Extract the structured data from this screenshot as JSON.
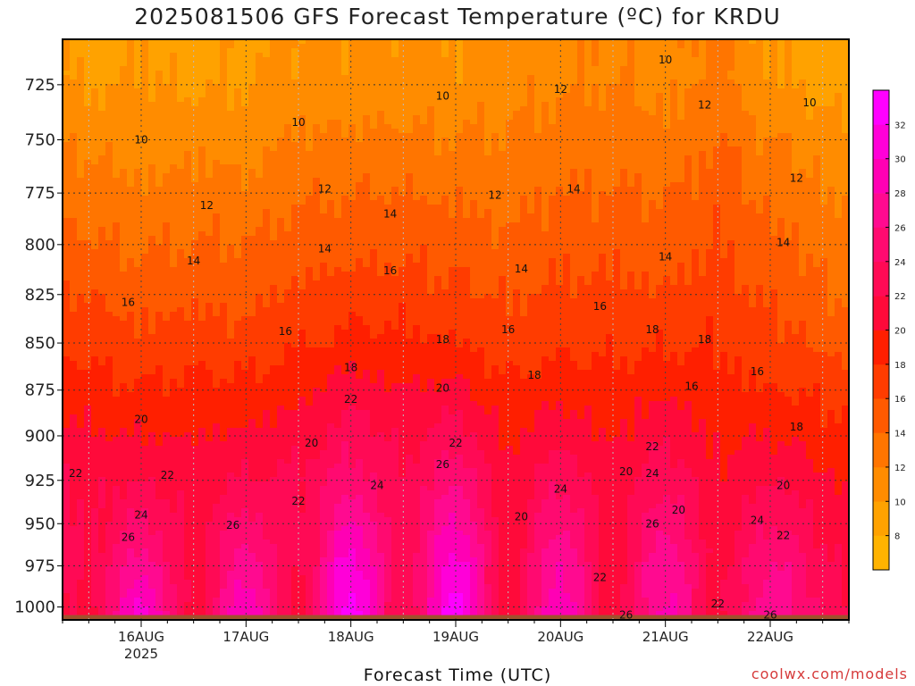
{
  "chart_data": {
    "type": "heatmap",
    "title": "2025081506 GFS Forecast Temperature (ºC) for KRDU",
    "xlabel": "Forecast Time (UTC)",
    "ylabel": "",
    "y_scale": "log",
    "ylim": [
      1008,
      705
    ],
    "xlim": [
      "2025-08-15 06",
      "2025-08-22 18"
    ],
    "y_ticks": [
      725,
      750,
      775,
      800,
      825,
      850,
      875,
      900,
      925,
      950,
      975,
      1000
    ],
    "x_ticks": [
      {
        "time": "2025-08-16 00",
        "label": "16AUG",
        "sublabel": "2025"
      },
      {
        "time": "2025-08-17 00",
        "label": "17AUG",
        "sublabel": ""
      },
      {
        "time": "2025-08-18 00",
        "label": "18AUG",
        "sublabel": ""
      },
      {
        "time": "2025-08-19 00",
        "label": "19AUG",
        "sublabel": ""
      },
      {
        "time": "2025-08-20 00",
        "label": "20AUG",
        "sublabel": ""
      },
      {
        "time": "2025-08-21 00",
        "label": "21AUG",
        "sublabel": ""
      },
      {
        "time": "2025-08-22 00",
        "label": "22AUG",
        "sublabel": ""
      }
    ],
    "grid": true,
    "contour_interval": 2,
    "colorbar": {
      "position": "right",
      "labels": [
        "8",
        "10",
        "12",
        "14",
        "16",
        "18",
        "20",
        "22",
        "24",
        "26",
        "28",
        "30",
        "32"
      ],
      "bands": [
        {
          "min": 6,
          "max": 8,
          "color": "#ffb300"
        },
        {
          "min": 8,
          "max": 10,
          "color": "#ffa200"
        },
        {
          "min": 10,
          "max": 12,
          "color": "#ff8c00"
        },
        {
          "min": 12,
          "max": 14,
          "color": "#ff7500"
        },
        {
          "min": 14,
          "max": 16,
          "color": "#ff5a00"
        },
        {
          "min": 16,
          "max": 18,
          "color": "#ff3c00"
        },
        {
          "min": 18,
          "max": 20,
          "color": "#ff1f00"
        },
        {
          "min": 20,
          "max": 22,
          "color": "#ff0a3a"
        },
        {
          "min": 22,
          "max": 24,
          "color": "#ff0a55"
        },
        {
          "min": 24,
          "max": 26,
          "color": "#ff0a70"
        },
        {
          "min": 26,
          "max": 28,
          "color": "#ff0a90"
        },
        {
          "min": 28,
          "max": 30,
          "color": "#ff00b4"
        },
        {
          "min": 30,
          "max": 32,
          "color": "#ff00d8"
        },
        {
          "min": 32,
          "max": 34,
          "color": "#ff00ff"
        }
      ]
    },
    "ground_color": "#a0522d",
    "temperature_profiles": [
      {
        "time": "2025-08-15 06",
        "p": [
          720,
          760,
          800,
          850,
          880,
          925,
          975,
          1005
        ],
        "t": [
          10,
          12.5,
          14.6,
          17.5,
          19.5,
          22.5,
          22.5,
          22
        ]
      },
      {
        "time": "2025-08-15 12",
        "p": [
          720,
          760,
          800,
          850,
          880,
          925,
          975,
          1005
        ],
        "t": [
          9.5,
          12,
          14.3,
          17.3,
          19.2,
          21.5,
          22,
          21.5
        ]
      },
      {
        "time": "2025-08-16 00",
        "p": [
          720,
          760,
          800,
          850,
          880,
          925,
          975,
          1005
        ],
        "t": [
          10,
          11.5,
          13.8,
          16.5,
          18.6,
          21.8,
          27,
          31
        ]
      },
      {
        "time": "2025-08-16 12",
        "p": [
          720,
          760,
          800,
          850,
          880,
          925,
          975,
          1005
        ],
        "t": [
          9.5,
          12,
          14,
          17,
          18.8,
          21.3,
          21.5,
          21
        ]
      },
      {
        "time": "2025-08-17 00",
        "p": [
          720,
          760,
          800,
          850,
          880,
          925,
          975,
          1005
        ],
        "t": [
          9.8,
          11.7,
          14,
          16.8,
          19,
          22.2,
          27,
          30
        ]
      },
      {
        "time": "2025-08-17 12",
        "p": [
          720,
          760,
          800,
          850,
          880,
          925,
          975,
          1005
        ],
        "t": [
          10.5,
          12.8,
          15,
          17.8,
          19.8,
          22.5,
          22,
          21.5
        ]
      },
      {
        "time": "2025-08-18 00",
        "p": [
          720,
          760,
          800,
          850,
          880,
          925,
          975,
          1005
        ],
        "t": [
          10.5,
          13,
          15.3,
          18.6,
          21.5,
          25,
          31,
          33
        ]
      },
      {
        "time": "2025-08-18 12",
        "p": [
          720,
          760,
          800,
          850,
          880,
          925,
          975,
          1005
        ],
        "t": [
          10.5,
          13.2,
          15.5,
          18.5,
          20.5,
          22.5,
          23,
          22
        ]
      },
      {
        "time": "2025-08-19 00",
        "p": [
          720,
          760,
          800,
          850,
          880,
          925,
          975,
          1005
        ],
        "t": [
          10.2,
          12.8,
          15,
          18,
          21,
          25.5,
          31,
          33
        ]
      },
      {
        "time": "2025-08-19 12",
        "p": [
          720,
          760,
          800,
          850,
          880,
          925,
          975,
          1005
        ],
        "t": [
          11,
          12.6,
          14.5,
          17,
          18.8,
          20.8,
          21,
          20.5
        ]
      },
      {
        "time": "2025-08-20 00",
        "p": [
          720,
          760,
          800,
          850,
          880,
          925,
          975,
          1005
        ],
        "t": [
          11.5,
          13.5,
          15.2,
          17.5,
          19.5,
          23.5,
          28,
          29.5
        ]
      },
      {
        "time": "2025-08-20 12",
        "p": [
          720,
          760,
          800,
          850,
          880,
          925,
          975,
          1005
        ],
        "t": [
          11.8,
          13.5,
          15.3,
          17.6,
          19.2,
          20.7,
          21.5,
          21
        ]
      },
      {
        "time": "2025-08-21 00",
        "p": [
          720,
          760,
          800,
          850,
          880,
          925,
          975,
          1005
        ],
        "t": [
          11.2,
          13,
          15,
          17.6,
          20,
          23.5,
          27.5,
          28.5
        ]
      },
      {
        "time": "2025-08-21 12",
        "p": [
          720,
          760,
          800,
          850,
          880,
          925,
          975,
          1005
        ],
        "t": [
          12.5,
          14.5,
          16,
          17.8,
          19,
          20.4,
          21.5,
          21.5
        ]
      },
      {
        "time": "2025-08-22 00",
        "p": [
          720,
          760,
          800,
          850,
          880,
          925,
          975,
          1005
        ],
        "t": [
          10,
          12.5,
          14.5,
          16.7,
          18.3,
          21.8,
          26,
          27.5
        ]
      },
      {
        "time": "2025-08-22 18",
        "p": [
          720,
          760,
          800,
          850,
          880,
          925,
          975,
          1005
        ],
        "t": [
          9,
          11,
          12.8,
          15.2,
          17.8,
          19.8,
          21.5,
          22
        ]
      }
    ],
    "contour_labels": [
      {
        "value": "10",
        "time": "2025-08-16 00",
        "p": 750
      },
      {
        "value": "10",
        "time": "2025-08-17 12",
        "p": 742
      },
      {
        "value": "10",
        "time": "2025-08-18 21",
        "p": 730
      },
      {
        "value": "10",
        "time": "2025-08-21 00",
        "p": 714
      },
      {
        "value": "10",
        "time": "2025-08-22 09",
        "p": 733
      },
      {
        "value": "12",
        "time": "2025-08-16 15",
        "p": 781
      },
      {
        "value": "12",
        "time": "2025-08-17 18",
        "p": 773
      },
      {
        "value": "12",
        "time": "2025-08-19 09",
        "p": 776
      },
      {
        "value": "12",
        "time": "2025-08-20 00",
        "p": 727
      },
      {
        "value": "12",
        "time": "2025-08-21 09",
        "p": 734
      },
      {
        "value": "12",
        "time": "2025-08-22 06",
        "p": 768
      },
      {
        "value": "14",
        "time": "2025-08-16 12",
        "p": 808
      },
      {
        "value": "14",
        "time": "2025-08-17 18",
        "p": 802
      },
      {
        "value": "14",
        "time": "2025-08-18 09",
        "p": 785
      },
      {
        "value": "14",
        "time": "2025-08-19 15",
        "p": 812
      },
      {
        "value": "14",
        "time": "2025-08-20 03",
        "p": 773
      },
      {
        "value": "14",
        "time": "2025-08-21 00",
        "p": 806
      },
      {
        "value": "14",
        "time": "2025-08-22 03",
        "p": 799
      },
      {
        "value": "16",
        "time": "2025-08-15 21",
        "p": 829
      },
      {
        "value": "16",
        "time": "2025-08-17 09",
        "p": 844
      },
      {
        "value": "16",
        "time": "2025-08-18 09",
        "p": 813
      },
      {
        "value": "16",
        "time": "2025-08-19 12",
        "p": 843
      },
      {
        "value": "16",
        "time": "2025-08-20 09",
        "p": 831
      },
      {
        "value": "16",
        "time": "2025-08-21 06",
        "p": 873
      },
      {
        "value": "16",
        "time": "2025-08-21 21",
        "p": 865
      },
      {
        "value": "18",
        "time": "2025-08-18 00",
        "p": 863
      },
      {
        "value": "18",
        "time": "2025-08-18 21",
        "p": 848
      },
      {
        "value": "18",
        "time": "2025-08-19 18",
        "p": 867
      },
      {
        "value": "18",
        "time": "2025-08-20 21",
        "p": 843
      },
      {
        "value": "18",
        "time": "2025-08-21 09",
        "p": 848
      },
      {
        "value": "18",
        "time": "2025-08-22 06",
        "p": 895
      },
      {
        "value": "20",
        "time": "2025-08-16 00",
        "p": 891
      },
      {
        "value": "20",
        "time": "2025-08-17 15",
        "p": 904
      },
      {
        "value": "20",
        "time": "2025-08-18 21",
        "p": 874
      },
      {
        "value": "20",
        "time": "2025-08-19 15",
        "p": 946
      },
      {
        "value": "20",
        "time": "2025-08-20 15",
        "p": 920
      },
      {
        "value": "20",
        "time": "2025-08-21 03",
        "p": 942
      },
      {
        "value": "20",
        "time": "2025-08-22 03",
        "p": 928
      },
      {
        "value": "22",
        "time": "2025-08-15 09",
        "p": 921
      },
      {
        "value": "22",
        "time": "2025-08-16 06",
        "p": 922
      },
      {
        "value": "22",
        "time": "2025-08-17 12",
        "p": 937
      },
      {
        "value": "22",
        "time": "2025-08-18 00",
        "p": 880
      },
      {
        "value": "22",
        "time": "2025-08-19 00",
        "p": 904
      },
      {
        "value": "22",
        "time": "2025-08-20 09",
        "p": 982
      },
      {
        "value": "22",
        "time": "2025-08-20 21",
        "p": 906
      },
      {
        "value": "22",
        "time": "2025-08-21 12",
        "p": 998
      },
      {
        "value": "22",
        "time": "2025-08-22 03",
        "p": 957
      },
      {
        "value": "24",
        "time": "2025-08-16 00",
        "p": 945
      },
      {
        "value": "24",
        "time": "2025-08-18 06",
        "p": 928
      },
      {
        "value": "24",
        "time": "2025-08-20 00",
        "p": 930
      },
      {
        "value": "24",
        "time": "2025-08-20 21",
        "p": 921
      },
      {
        "value": "24",
        "time": "2025-08-21 21",
        "p": 948
      },
      {
        "value": "26",
        "time": "2025-08-15 21",
        "p": 958
      },
      {
        "value": "26",
        "time": "2025-08-16 21",
        "p": 951
      },
      {
        "value": "26",
        "time": "2025-08-18 21",
        "p": 916
      },
      {
        "value": "26",
        "time": "2025-08-20 21",
        "p": 950
      },
      {
        "value": "26",
        "time": "2025-08-20 15",
        "p": 1005
      },
      {
        "value": "26",
        "time": "2025-08-22 00",
        "p": 1005
      }
    ]
  },
  "credit": "coolwx.com/models"
}
